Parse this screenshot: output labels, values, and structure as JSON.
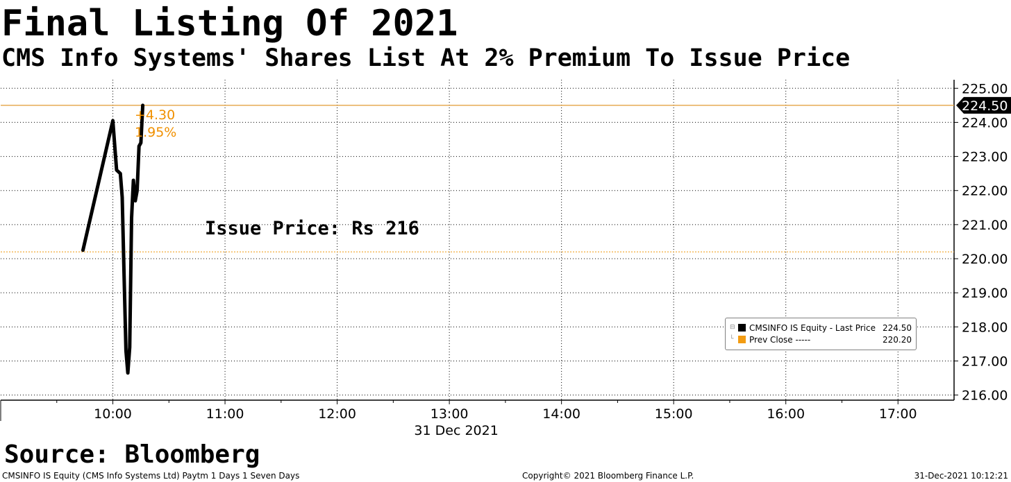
{
  "header": {
    "title": "Final Listing Of 2021",
    "subtitle": "CMS Info Systems' Shares List At 2% Premium To Issue Price"
  },
  "chart_data": {
    "type": "line",
    "date_label": "31 Dec 2021",
    "x_ticks": [
      "10:00",
      "11:00",
      "12:00",
      "13:00",
      "14:00",
      "15:00",
      "16:00",
      "17:00"
    ],
    "y_ticks": [
      "225.00",
      "224.00",
      "223.00",
      "222.00",
      "221.00",
      "220.00",
      "219.00",
      "218.00",
      "217.00",
      "216.00"
    ],
    "ylim": [
      215.85,
      225.25
    ],
    "xlim": [
      "09:00",
      "17:30"
    ],
    "grid": true,
    "y_axis_side": "right",
    "series": [
      {
        "name": "CMSINFO IS Equity - Last Price",
        "color": "#000000",
        "points": [
          {
            "x": "09:44",
            "y": 220.25
          },
          {
            "x": "10:00",
            "y": 224.05
          },
          {
            "x": "10:02",
            "y": 222.6
          },
          {
            "x": "10:04",
            "y": 222.5
          },
          {
            "x": "10:05",
            "y": 221.8
          },
          {
            "x": "10:06",
            "y": 219.5
          },
          {
            "x": "10:07",
            "y": 217.3
          },
          {
            "x": "10:08",
            "y": 216.65
          },
          {
            "x": "10:09",
            "y": 217.4
          },
          {
            "x": "10:10",
            "y": 221.2
          },
          {
            "x": "10:11",
            "y": 222.3
          },
          {
            "x": "10:12",
            "y": 221.7
          },
          {
            "x": "10:13",
            "y": 222.0
          },
          {
            "x": "10:14",
            "y": 223.3
          },
          {
            "x": "10:15",
            "y": 223.4
          },
          {
            "x": "10:16",
            "y": 224.5
          }
        ]
      }
    ],
    "reference_lines": [
      {
        "name": "Prev Close",
        "value": 220.2,
        "color": "#f0a020",
        "style": "dotted"
      },
      {
        "name": "Last Price",
        "value": 224.5,
        "color": "#e09a30",
        "style": "solid"
      }
    ],
    "last_price_tag": "224.50",
    "change_labels": [
      "+4.30",
      "1.95%"
    ],
    "change_color": "#f09000",
    "annotation": "Issue Price: Rs 216",
    "legend": {
      "placement": "bottom-right",
      "entries": [
        {
          "label": "CMSINFO IS Equity - Last Price",
          "value": "224.50",
          "color": "#000000"
        },
        {
          "label": "Prev Close -----",
          "value": "220.20",
          "color": "#f39c12"
        }
      ]
    }
  },
  "source": "Source: Bloomberg",
  "footer": {
    "left": "CMSINFO IS Equity (CMS Info Systems Ltd) Paytm 1 Days 1 Seven Days",
    "center": "Copyright© 2021 Bloomberg Finance L.P.",
    "right": "31-Dec-2021 10:12:21"
  }
}
